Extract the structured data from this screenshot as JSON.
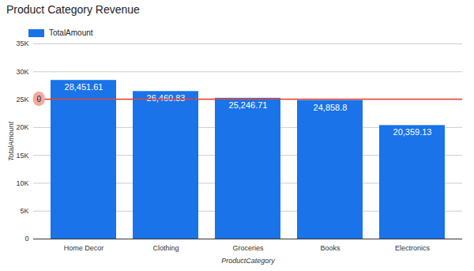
{
  "chart_data": {
    "type": "bar",
    "title": "Product Category Revenue",
    "x_label": "ProductCategory",
    "y_label": "TotalAmount",
    "categories": [
      "Home Decor",
      "Clothing",
      "Groceries",
      "Books",
      "Electronics"
    ],
    "series": [
      {
        "name": "TotalAmount",
        "color": "#1a73e8",
        "values": [
          28451.61,
          26460.83,
          25246.71,
          24858.8,
          20359.13
        ],
        "value_labels": [
          "28,451.61",
          "26,460.83",
          "25,246.71",
          "24,858.8",
          "20,359.13"
        ]
      }
    ],
    "ylim": [
      0,
      35000
    ],
    "yticks": [
      0,
      {
        "value": 5000,
        "label": "5K"
      },
      {
        "value": 10000,
        "label": "10K"
      },
      {
        "value": 15000,
        "label": "15K"
      },
      {
        "value": 20000,
        "label": "20K"
      },
      {
        "value": 25000,
        "label": "25K"
      },
      {
        "value": 30000,
        "label": "30K"
      },
      {
        "value": 35000,
        "label": "35K"
      }
    ],
    "grid": true,
    "data_labels": true,
    "legend": "top-left",
    "reference_line": {
      "value": 25075.42,
      "label": "0",
      "color": "#ea4335"
    }
  }
}
